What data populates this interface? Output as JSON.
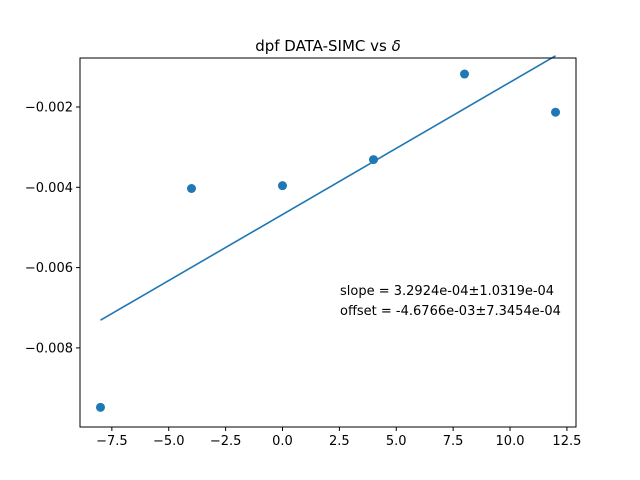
{
  "chart_data": {
    "type": "scatter",
    "title_main": "dpf DATA-SIMC vs ",
    "title_symbol": "δ",
    "xlabel": "",
    "ylabel": "",
    "xlim": [
      -8.9,
      12.9
    ],
    "ylim": [
      -0.00997,
      -0.00078
    ],
    "xticks": [
      {
        "value": -7.5,
        "label": "−7.5"
      },
      {
        "value": -5.0,
        "label": "−5.0"
      },
      {
        "value": -2.5,
        "label": "−2.5"
      },
      {
        "value": 0.0,
        "label": "0.0"
      },
      {
        "value": 2.5,
        "label": "2.5"
      },
      {
        "value": 5.0,
        "label": "5.0"
      },
      {
        "value": 7.5,
        "label": "7.5"
      },
      {
        "value": 10.0,
        "label": "10.0"
      },
      {
        "value": 12.5,
        "label": "12.5"
      }
    ],
    "yticks": [
      {
        "value": -0.008,
        "label": "−0.008"
      },
      {
        "value": -0.006,
        "label": "−0.006"
      },
      {
        "value": -0.004,
        "label": "−0.004"
      },
      {
        "value": -0.002,
        "label": "−0.002"
      }
    ],
    "grid": false,
    "color": "#1f77b4",
    "points": [
      {
        "x": -8,
        "y": -0.00948
      },
      {
        "x": -4,
        "y": -0.00403
      },
      {
        "x": 0,
        "y": -0.00396
      },
      {
        "x": 4,
        "y": -0.00331
      },
      {
        "x": 8,
        "y": -0.00118
      },
      {
        "x": 12,
        "y": -0.00213
      }
    ],
    "fit_line": {
      "x": [
        -8,
        12
      ],
      "y": [
        -0.0073105,
        -0.0007257
      ]
    },
    "annotations": [
      "slope = 3.2924e-04±1.0319e-04",
      "offset = -4.6766e-03±7.3454e-04"
    ]
  }
}
